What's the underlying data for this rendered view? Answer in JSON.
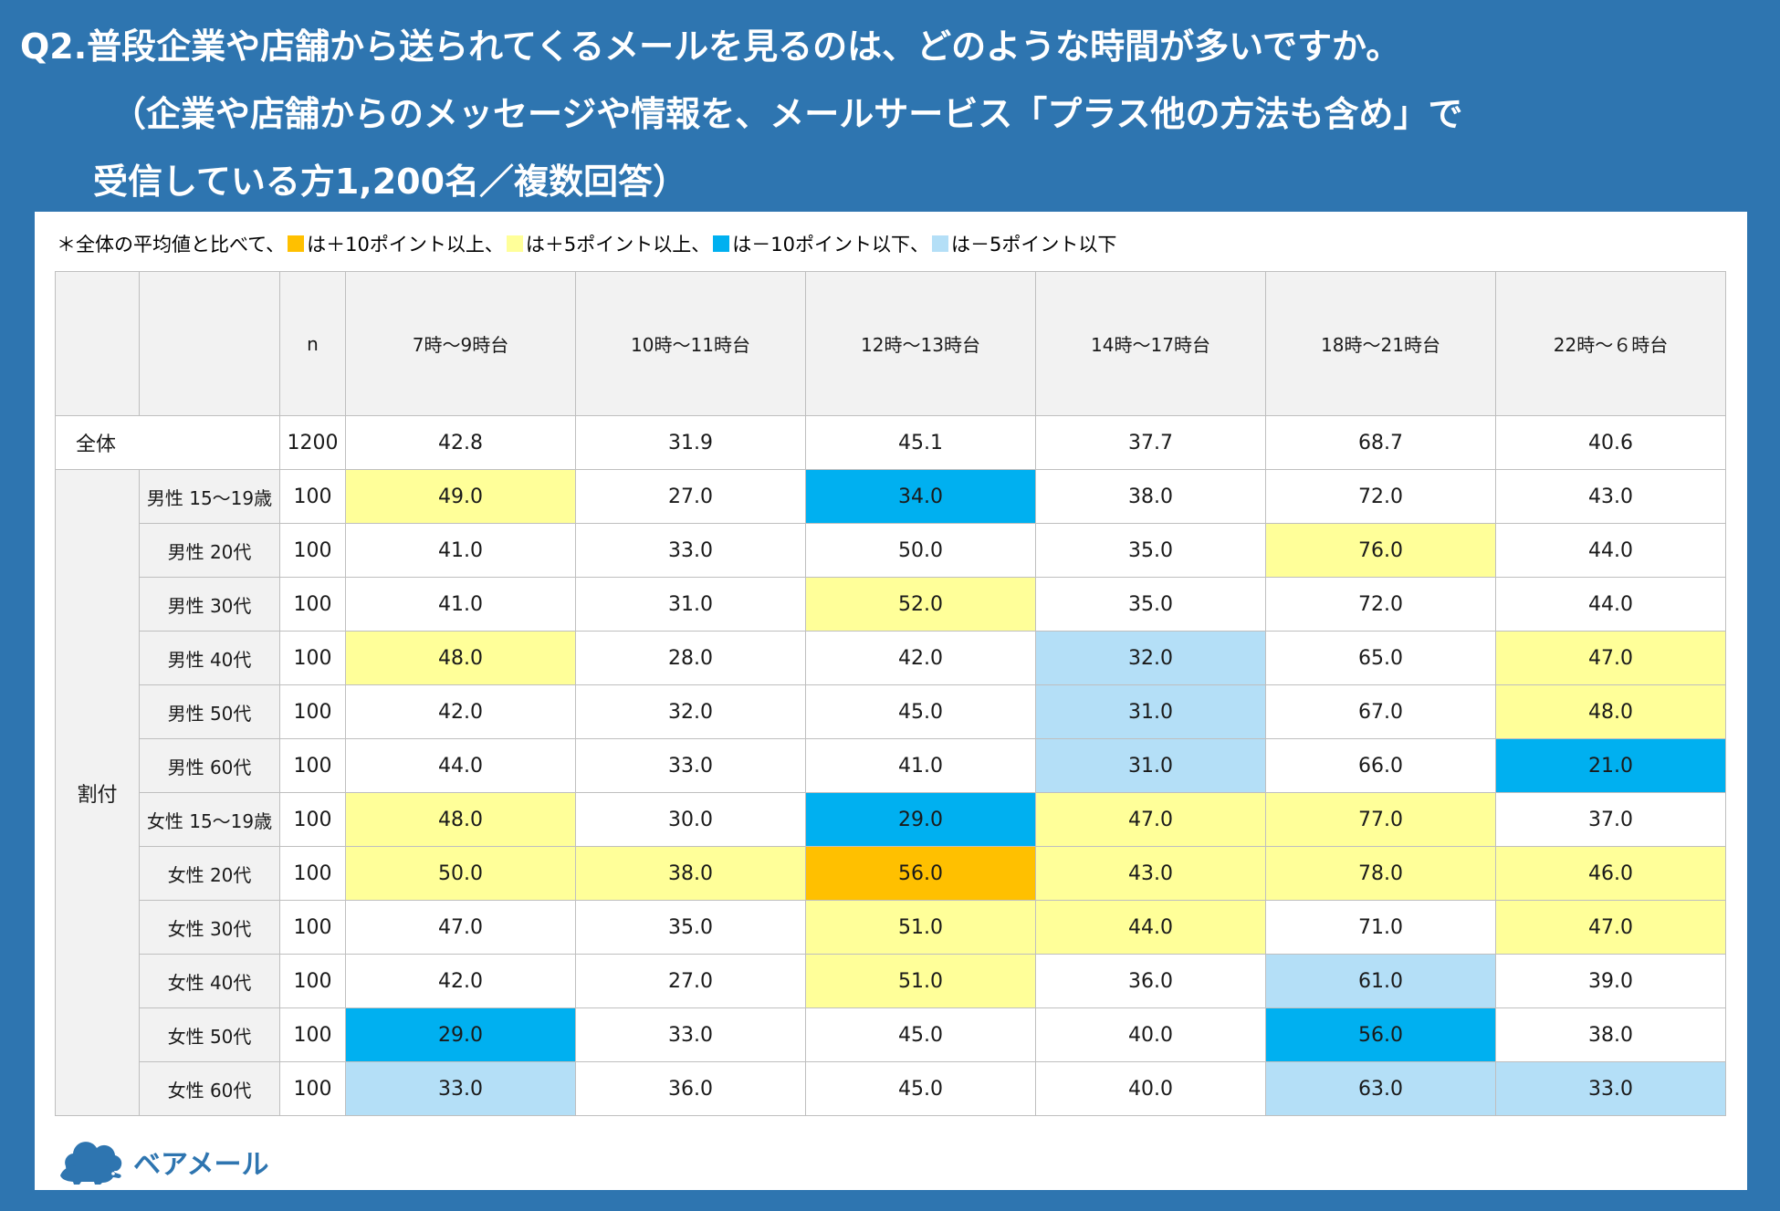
{
  "title": {
    "line1": "Q2.普段企業や店舗から送られてくるメールを見るのは、どのような時間が多いですか。",
    "line2": "（企業や店舗からのメッセージや情報を、メールサービス「プラス他の方法も含め」で",
    "line3": "受信している方1,200名／複数回答）"
  },
  "legend_note": {
    "prefix": "＊全体の平均値と比べて、",
    "items": [
      {
        "color": "#FFC000",
        "label": "は＋10ポイント以上、"
      },
      {
        "color": "#FFFF99",
        "label": "は＋5ポイント以上、"
      },
      {
        "color": "#00B0F0",
        "label": "は－10ポイント以下、"
      },
      {
        "color": "#B4DFF7",
        "label": "は－5ポイント以下"
      }
    ]
  },
  "colors": {
    "background": "#2E75B0",
    "plus10": "#FFC000",
    "plus5": "#FFFF99",
    "minus10": "#00B0F0",
    "minus5": "#B4DFF7"
  },
  "chart_data": {
    "type": "table",
    "n_header": "n",
    "columns": [
      "7時～9時台",
      "10時～11時台",
      "12時～13時台",
      "14時～17時台",
      "18時～21時台",
      "22時～６時台"
    ],
    "total": {
      "label": "全体",
      "n": "1200",
      "values": [
        "42.8",
        "31.9",
        "45.1",
        "37.7",
        "68.7",
        "40.6"
      ]
    },
    "group_label": "割付",
    "rows": [
      {
        "label": "男性 15～19歳",
        "n": "100",
        "values": [
          "49.0",
          "27.0",
          "34.0",
          "38.0",
          "72.0",
          "43.0"
        ],
        "colors": [
          "plus5",
          "",
          "minus10",
          "",
          "",
          ""
        ]
      },
      {
        "label": "男性 20代",
        "n": "100",
        "values": [
          "41.0",
          "33.0",
          "50.0",
          "35.0",
          "76.0",
          "44.0"
        ],
        "colors": [
          "",
          "",
          "",
          "",
          "plus5",
          ""
        ]
      },
      {
        "label": "男性 30代",
        "n": "100",
        "values": [
          "41.0",
          "31.0",
          "52.0",
          "35.0",
          "72.0",
          "44.0"
        ],
        "colors": [
          "",
          "",
          "plus5",
          "",
          "",
          ""
        ]
      },
      {
        "label": "男性 40代",
        "n": "100",
        "values": [
          "48.0",
          "28.0",
          "42.0",
          "32.0",
          "65.0",
          "47.0"
        ],
        "colors": [
          "plus5",
          "",
          "",
          "minus5",
          "",
          "plus5"
        ]
      },
      {
        "label": "男性 50代",
        "n": "100",
        "values": [
          "42.0",
          "32.0",
          "45.0",
          "31.0",
          "67.0",
          "48.0"
        ],
        "colors": [
          "",
          "",
          "",
          "minus5",
          "",
          "plus5"
        ]
      },
      {
        "label": "男性 60代",
        "n": "100",
        "values": [
          "44.0",
          "33.0",
          "41.0",
          "31.0",
          "66.0",
          "21.0"
        ],
        "colors": [
          "",
          "",
          "",
          "minus5",
          "",
          "minus10"
        ]
      },
      {
        "label": "女性 15～19歳",
        "n": "100",
        "values": [
          "48.0",
          "30.0",
          "29.0",
          "47.0",
          "77.0",
          "37.0"
        ],
        "colors": [
          "plus5",
          "",
          "minus10",
          "plus5",
          "plus5",
          ""
        ]
      },
      {
        "label": "女性 20代",
        "n": "100",
        "values": [
          "50.0",
          "38.0",
          "56.0",
          "43.0",
          "78.0",
          "46.0"
        ],
        "colors": [
          "plus5",
          "plus5",
          "plus10",
          "plus5",
          "plus5",
          "plus5"
        ]
      },
      {
        "label": "女性 30代",
        "n": "100",
        "values": [
          "47.0",
          "35.0",
          "51.0",
          "44.0",
          "71.0",
          "47.0"
        ],
        "colors": [
          "",
          "",
          "plus5",
          "plus5",
          "",
          "plus5"
        ]
      },
      {
        "label": "女性 40代",
        "n": "100",
        "values": [
          "42.0",
          "27.0",
          "51.0",
          "36.0",
          "61.0",
          "39.0"
        ],
        "colors": [
          "",
          "",
          "plus5",
          "",
          "minus5",
          ""
        ]
      },
      {
        "label": "女性 50代",
        "n": "100",
        "values": [
          "29.0",
          "33.0",
          "45.0",
          "40.0",
          "56.0",
          "38.0"
        ],
        "colors": [
          "minus10",
          "",
          "",
          "",
          "minus10",
          ""
        ]
      },
      {
        "label": "女性 60代",
        "n": "100",
        "values": [
          "33.0",
          "36.0",
          "45.0",
          "40.0",
          "63.0",
          "33.0"
        ],
        "colors": [
          "minus5",
          "",
          "",
          "",
          "minus5",
          "minus5"
        ]
      }
    ]
  },
  "logo": {
    "text": "ベアメール",
    "icon": "bear-cloud-icon"
  }
}
